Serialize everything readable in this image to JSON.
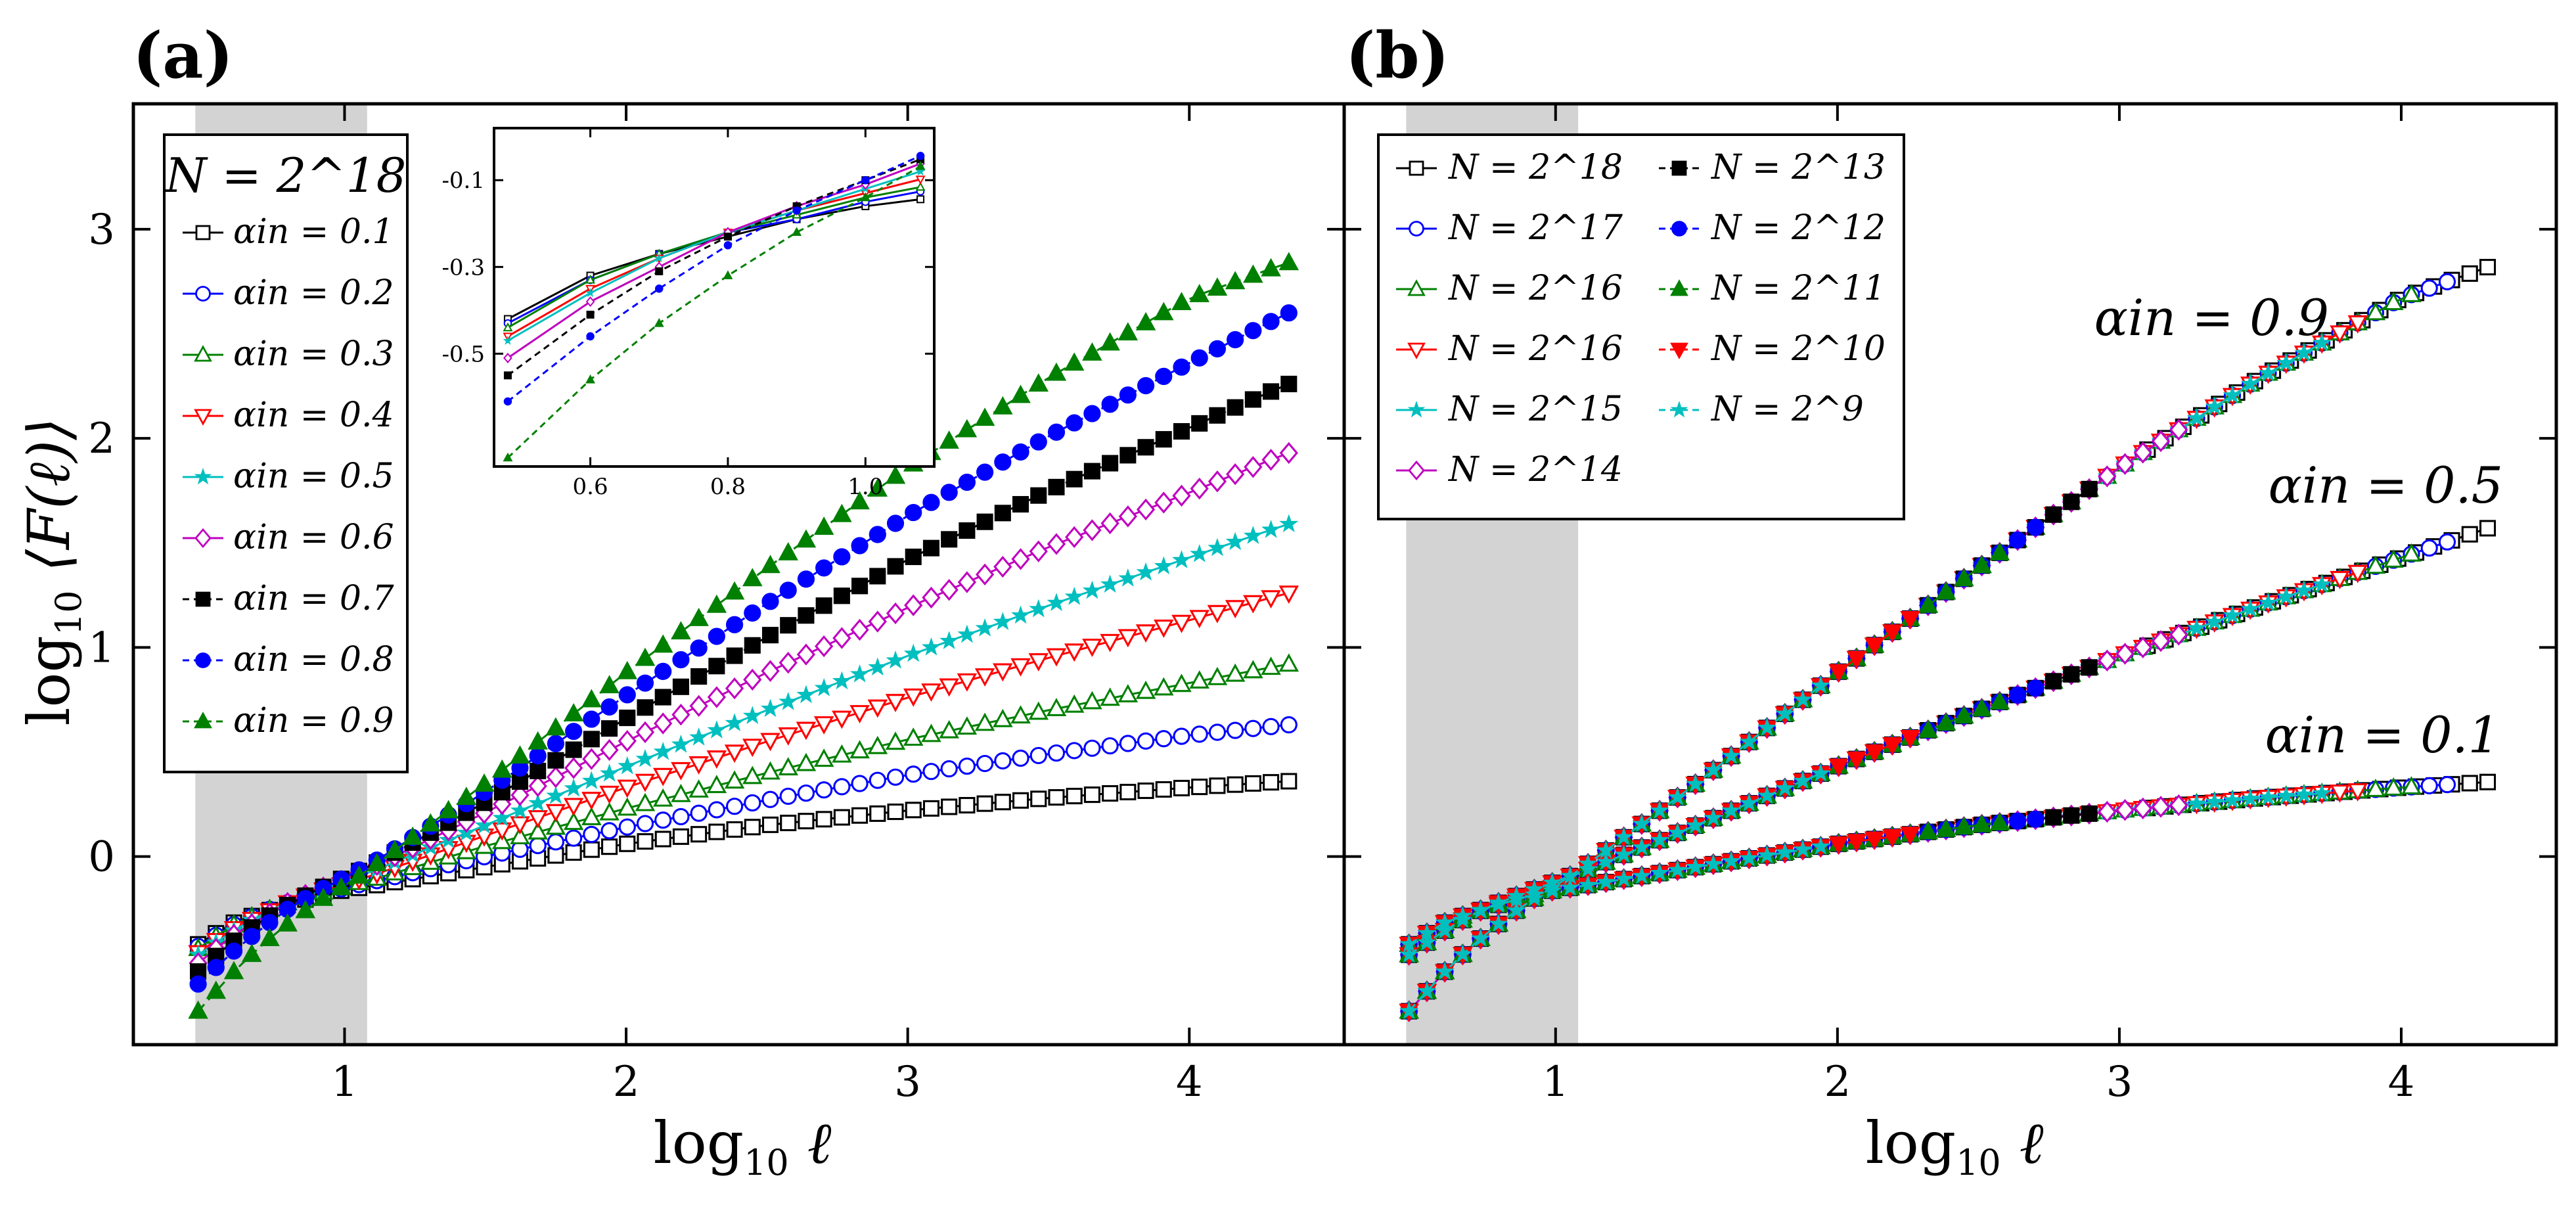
{
  "chart_data": [
    {
      "type": "line",
      "panel_label": "(a)",
      "xlabel": "log10 ℓ",
      "ylabel": "log10 ⟨F(ℓ)⟩",
      "xlim": [
        0.25,
        4.55
      ],
      "ylim": [
        -0.9,
        3.6
      ],
      "xticks": [
        "1",
        "2",
        "3",
        "4"
      ],
      "yticks": [
        "0",
        "1",
        "2",
        "3"
      ],
      "shaded_region": [
        0.47,
        1.08
      ],
      "legend": {
        "title": "N = 2^18",
        "location": "upper-left",
        "entries": [
          "αin = 0.1",
          "αin = 0.2",
          "αin = 0.3",
          "αin = 0.4",
          "αin = 0.5",
          "αin = 0.6",
          "αin = 0.7",
          "αin = 0.8",
          "αin = 0.9"
        ]
      },
      "series": [
        {
          "label": "αin = 0.1",
          "alpha": 0.1,
          "color": "#000000",
          "marker": "square-open",
          "linestyle": "solid",
          "x": [
            0.48,
            0.6,
            0.7,
            0.8,
            0.9,
            1.0,
            1.1,
            1.5,
            2.0,
            2.5,
            3.0,
            3.5,
            4.0,
            4.35
          ],
          "y": [
            -0.42,
            -0.32,
            -0.27,
            -0.23,
            -0.19,
            -0.16,
            -0.14,
            -0.05,
            0.06,
            0.15,
            0.22,
            0.28,
            0.33,
            0.36
          ]
        },
        {
          "label": "αin = 0.2",
          "alpha": 0.2,
          "color": "#0000ff",
          "marker": "circle-open",
          "linestyle": "solid",
          "x": [
            0.48,
            0.6,
            0.7,
            0.8,
            0.9,
            1.0,
            1.1,
            1.5,
            2.0,
            2.5,
            3.0,
            3.5,
            4.0,
            4.35
          ],
          "y": [
            -0.43,
            -0.33,
            -0.27,
            -0.22,
            -0.19,
            -0.15,
            -0.12,
            0.0,
            0.14,
            0.27,
            0.39,
            0.49,
            0.58,
            0.63
          ]
        },
        {
          "label": "αin = 0.3",
          "alpha": 0.3,
          "color": "#008000",
          "marker": "triangle-up-open",
          "linestyle": "solid",
          "x": [
            0.48,
            0.6,
            0.7,
            0.8,
            0.9,
            1.0,
            1.1,
            1.5,
            2.0,
            2.5,
            3.0,
            3.5,
            4.0,
            4.35
          ],
          "y": [
            -0.44,
            -0.33,
            -0.27,
            -0.22,
            -0.18,
            -0.14,
            -0.11,
            0.05,
            0.23,
            0.4,
            0.56,
            0.7,
            0.83,
            0.92
          ]
        },
        {
          "label": "αin = 0.4",
          "alpha": 0.4,
          "color": "#ff0000",
          "marker": "triangle-down-open",
          "linestyle": "solid",
          "x": [
            0.48,
            0.6,
            0.7,
            0.8,
            0.9,
            1.0,
            1.1,
            1.5,
            2.0,
            2.5,
            3.0,
            3.5,
            4.0,
            4.35
          ],
          "y": [
            -0.46,
            -0.35,
            -0.28,
            -0.22,
            -0.17,
            -0.13,
            -0.09,
            0.1,
            0.33,
            0.55,
            0.76,
            0.95,
            1.13,
            1.26
          ]
        },
        {
          "label": "αin = 0.5",
          "alpha": 0.5,
          "color": "#00bfbf",
          "marker": "star",
          "linestyle": "solid",
          "x": [
            0.48,
            0.6,
            0.7,
            0.8,
            0.9,
            1.0,
            1.1,
            1.5,
            2.0,
            2.5,
            3.0,
            3.5,
            4.0,
            4.35
          ],
          "y": [
            -0.47,
            -0.36,
            -0.28,
            -0.22,
            -0.17,
            -0.12,
            -0.07,
            0.15,
            0.43,
            0.7,
            0.96,
            1.2,
            1.43,
            1.59
          ]
        },
        {
          "label": "αin = 0.6",
          "alpha": 0.6,
          "color": "#bf00bf",
          "marker": "diamond-open",
          "linestyle": "solid",
          "x": [
            0.48,
            0.6,
            0.7,
            0.8,
            0.9,
            1.0,
            1.1,
            1.5,
            2.0,
            2.5,
            3.0,
            3.5,
            4.0,
            4.35
          ],
          "y": [
            -0.51,
            -0.38,
            -0.3,
            -0.22,
            -0.16,
            -0.11,
            -0.05,
            0.21,
            0.55,
            0.88,
            1.19,
            1.48,
            1.74,
            1.93
          ]
        },
        {
          "label": "αin = 0.7",
          "alpha": 0.7,
          "color": "#000000",
          "marker": "square",
          "linestyle": "dashed",
          "x": [
            0.48,
            0.6,
            0.7,
            0.8,
            0.9,
            1.0,
            1.1,
            1.5,
            2.0,
            2.5,
            3.0,
            3.5,
            4.0,
            4.35
          ],
          "y": [
            -0.55,
            -0.41,
            -0.31,
            -0.23,
            -0.16,
            -0.1,
            -0.04,
            0.26,
            0.66,
            1.05,
            1.42,
            1.75,
            2.05,
            2.26
          ]
        },
        {
          "label": "αin = 0.8",
          "alpha": 0.8,
          "color": "#0000ff",
          "marker": "circle",
          "linestyle": "dashed",
          "x": [
            0.48,
            0.6,
            0.7,
            0.8,
            0.9,
            1.0,
            1.1,
            1.5,
            2.0,
            2.5,
            3.0,
            3.5,
            4.0,
            4.35
          ],
          "y": [
            -0.61,
            -0.46,
            -0.35,
            -0.25,
            -0.17,
            -0.1,
            -0.03,
            0.31,
            0.77,
            1.21,
            1.63,
            2.01,
            2.36,
            2.6
          ]
        },
        {
          "label": "αin = 0.9",
          "alpha": 0.9,
          "color": "#008000",
          "marker": "triangle-up",
          "linestyle": "dashed",
          "x": [
            0.48,
            0.6,
            0.7,
            0.8,
            0.9,
            1.0,
            1.1,
            1.5,
            2.0,
            2.5,
            3.0,
            3.5,
            4.0,
            4.35
          ],
          "y": [
            -0.74,
            -0.56,
            -0.43,
            -0.32,
            -0.22,
            -0.14,
            -0.05,
            0.35,
            0.88,
            1.38,
            1.86,
            2.29,
            2.67,
            2.84
          ]
        }
      ],
      "inset": {
        "xlim": [
          0.46,
          1.1
        ],
        "ylim": [
          -0.76,
          0.02
        ],
        "xticks": [
          "0.6",
          "0.8",
          "1.0"
        ],
        "yticks": [
          "-0.1",
          "-0.3",
          "-0.5"
        ]
      }
    },
    {
      "type": "line",
      "panel_label": "(b)",
      "xlabel": "log10 ℓ",
      "xlim": [
        0.25,
        4.55
      ],
      "ylim": [
        -0.9,
        3.6
      ],
      "xticks": [
        "1",
        "2",
        "3",
        "4"
      ],
      "shaded_region": [
        0.47,
        1.08
      ],
      "legend": {
        "location": "upper-left",
        "columns": 2,
        "entries": [
          "N = 2^18",
          "N = 2^17",
          "N = 2^16",
          "N = 2^16",
          "N = 2^15",
          "N = 2^14",
          "N = 2^13",
          "N = 2^12",
          "N = 2^11",
          "N = 2^10",
          "N = 2^9"
        ]
      },
      "annotations": [
        "αin = 0.9",
        "αin = 0.5",
        "αin = 0.1"
      ],
      "series": [
        {
          "label": "N = 2^18",
          "color": "#000000",
          "marker": "square-open",
          "linestyle": "solid",
          "x_range": [
            3.1,
            4.35
          ],
          "curves": [
            "0.9",
            "0.5",
            "0.1"
          ]
        },
        {
          "label": "N = 2^17",
          "color": "#0000ff",
          "marker": "circle-open",
          "linestyle": "solid",
          "x_range": [
            0.48,
            4.2
          ],
          "curves": [
            "0.9",
            "0.5",
            "0.1"
          ]
        },
        {
          "label": "N = 2^16",
          "color": "#008000",
          "marker": "triangle-up-open",
          "linestyle": "solid",
          "x_range": [
            0.48,
            4.05
          ],
          "curves": [
            "0.9",
            "0.5",
            "0.1"
          ]
        },
        {
          "label": "N = 2^16",
          "color": "#ff0000",
          "marker": "triangle-down-open",
          "linestyle": "solid",
          "x_range": [
            0.48,
            3.9
          ],
          "curves": [
            "0.9",
            "0.5",
            "0.1"
          ]
        },
        {
          "label": "N = 2^15",
          "color": "#00bfbf",
          "marker": "star",
          "linestyle": "solid",
          "x_range": [
            0.48,
            3.75
          ],
          "curves": [
            "0.9",
            "0.5",
            "0.1"
          ]
        },
        {
          "label": "N = 2^14",
          "color": "#bf00bf",
          "marker": "diamond-open",
          "linestyle": "solid",
          "x_range": [
            0.48,
            3.25
          ],
          "curves": [
            "0.9",
            "0.5",
            "0.1"
          ]
        },
        {
          "label": "N = 2^13",
          "color": "#000000",
          "marker": "square",
          "linestyle": "dashed",
          "x_range": [
            0.48,
            2.9
          ],
          "curves": [
            "0.9",
            "0.5",
            "0.1"
          ]
        },
        {
          "label": "N = 2^12",
          "color": "#0000ff",
          "marker": "circle",
          "linestyle": "dashed",
          "x_range": [
            0.48,
            2.75
          ],
          "curves": [
            "0.9",
            "0.5",
            "0.1"
          ]
        },
        {
          "label": "N = 2^11",
          "color": "#008000",
          "marker": "triangle-up",
          "linestyle": "dashed",
          "x_range": [
            0.48,
            2.6
          ],
          "curves": [
            "0.9",
            "0.5",
            "0.1"
          ]
        },
        {
          "label": "N = 2^10",
          "color": "#ff0000",
          "marker": "triangle-down",
          "linestyle": "dashed",
          "x_range": [
            0.48,
            2.3
          ],
          "curves": [
            "0.9",
            "0.5",
            "0.1"
          ]
        },
        {
          "label": "N = 2^9",
          "color": "#00bfbf",
          "marker": "star",
          "linestyle": "dashed",
          "x_range": [
            0.48,
            2.0
          ],
          "curves": [
            "0.9",
            "0.5",
            "0.1"
          ]
        }
      ]
    }
  ]
}
